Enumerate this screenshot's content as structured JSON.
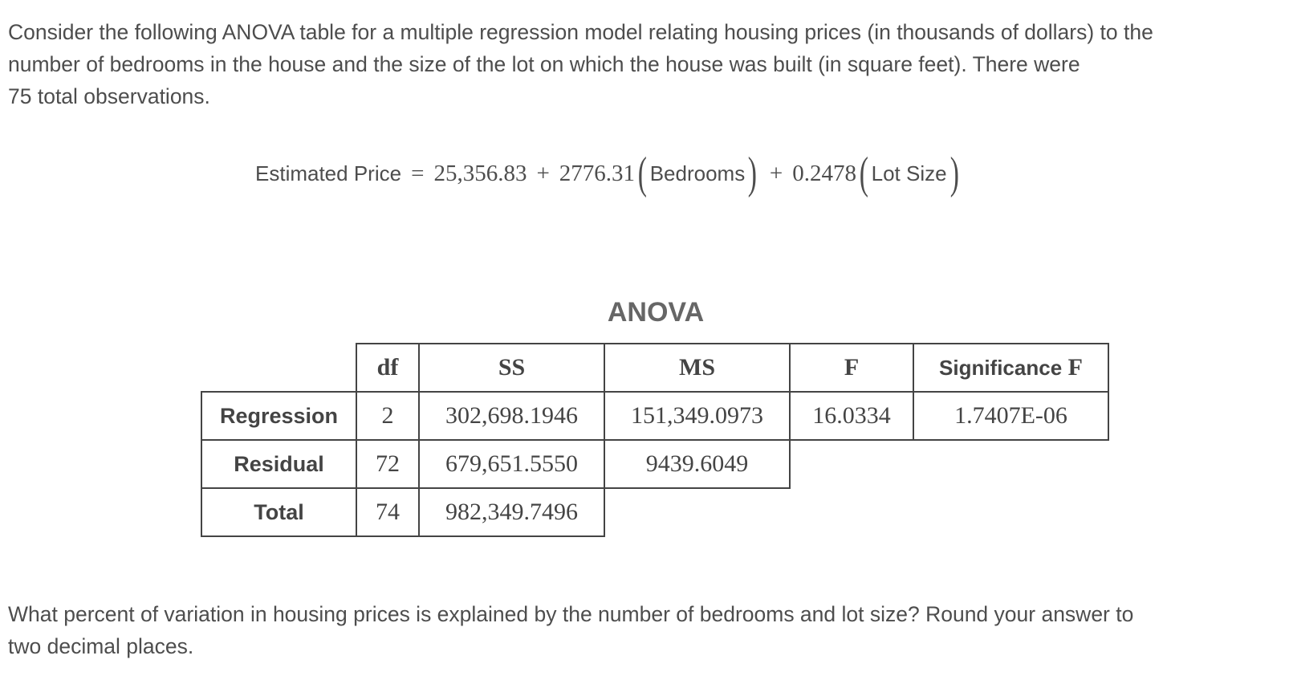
{
  "intro": {
    "line1": "Consider the following ANOVA table for a multiple regression model relating housing prices  (in thousands of dollars) to the",
    "line2": "number of bedrooms in the house and the size of the lot on which the house was built (in square feet). There were",
    "line3": "75 total observations."
  },
  "equation": {
    "lhs": "Estimated Price",
    "equals": "=",
    "intercept": "25,356.83",
    "plus1": "+",
    "coef1": "2776.31",
    "var1": "Bedrooms",
    "plus2": "+",
    "coef2": "0.2478",
    "var2": "Lot Size"
  },
  "anova": {
    "title": "ANOVA",
    "headers": {
      "df": "df",
      "ss": "SS",
      "ms": "MS",
      "f": "F",
      "sig_prefix": "Significance",
      "sig_f": "F"
    },
    "rows": [
      {
        "label": "Regression",
        "df": "2",
        "ss": "302,698.1946",
        "ms": "151,349.0973",
        "f": "16.0334",
        "sig": "1.7407E-06"
      },
      {
        "label": "Residual",
        "df": "72",
        "ss": "679,651.5550",
        "ms": "9439.6049"
      },
      {
        "label": "Total",
        "df": "74",
        "ss": "982,349.7496"
      }
    ]
  },
  "question": {
    "line1": "What percent of variation in housing prices is explained by the number of bedrooms and lot size? Round your answer to",
    "line2": "two decimal places."
  }
}
